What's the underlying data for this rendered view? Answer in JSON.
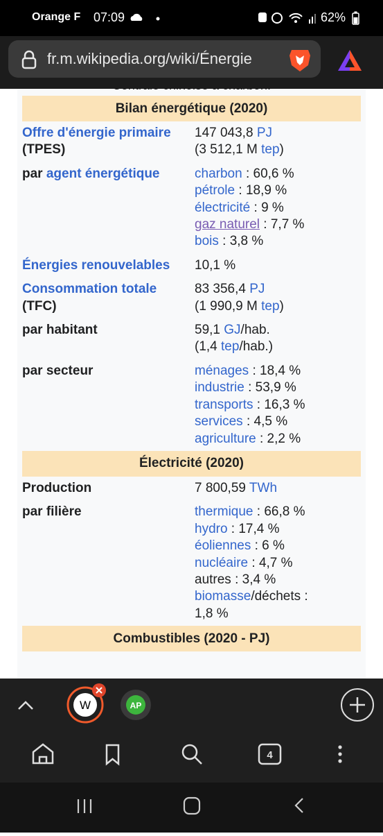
{
  "status_bar": {
    "carrier": "Orange F",
    "time": "07:09",
    "battery": "62%"
  },
  "url_bar": {
    "url": "fr.m.wikipedia.org/wiki/Énergie"
  },
  "page": {
    "caption": "Centrale chinoise à charbon.",
    "sections": [
      {
        "title": "Bilan énergétique (2020)",
        "rows": [
          {
            "label": [
              [
                {
                  "text": "Offre d'énergie primaire",
                  "link": true
                }
              ],
              [
                {
                  "text": "(TPES)"
                }
              ]
            ],
            "value": [
              [
                {
                  "text": "147 043,8 "
                },
                {
                  "text": "PJ",
                  "link": true
                }
              ],
              [
                {
                  "text": "(3 512,1 M "
                },
                {
                  "text": "tep",
                  "link": true
                },
                {
                  "text": ")"
                }
              ]
            ]
          },
          {
            "label": [
              [
                {
                  "text": "par "
                },
                {
                  "text": "agent énergétique",
                  "link": true
                }
              ]
            ],
            "value": [
              [
                {
                  "text": "charbon",
                  "link": true
                },
                {
                  "text": " : 60,6 %"
                }
              ],
              [
                {
                  "text": "pétrole",
                  "link": true
                },
                {
                  "text": " : 18,9 %"
                }
              ],
              [
                {
                  "text": "électricité",
                  "link": true
                },
                {
                  "text": " : 9 %"
                }
              ],
              [
                {
                  "text": "gaz naturel",
                  "visited": true
                },
                {
                  "text": " : 7,7 %"
                }
              ],
              [
                {
                  "text": "bois",
                  "link": true
                },
                {
                  "text": " : 3,8 %"
                }
              ]
            ]
          },
          {
            "label": [
              [
                {
                  "text": "Énergies renouvelables",
                  "link": true
                }
              ]
            ],
            "value": [
              [
                {
                  "text": "10,1 %"
                }
              ]
            ]
          },
          {
            "label": [
              [
                {
                  "text": "Consommation totale",
                  "link": true
                }
              ],
              [
                {
                  "text": "(TFC)"
                }
              ]
            ],
            "value": [
              [
                {
                  "text": "83 356,4 "
                },
                {
                  "text": "PJ",
                  "link": true
                }
              ],
              [
                {
                  "text": "(1 990,9 M "
                },
                {
                  "text": "tep",
                  "link": true
                },
                {
                  "text": ")"
                }
              ]
            ]
          },
          {
            "label": [
              [
                {
                  "text": "par habitant"
                }
              ]
            ],
            "value": [
              [
                {
                  "text": "59,1 "
                },
                {
                  "text": "GJ",
                  "link": true
                },
                {
                  "text": "/hab."
                }
              ],
              [
                {
                  "text": "(1,4 "
                },
                {
                  "text": "tep",
                  "link": true
                },
                {
                  "text": "/hab.)"
                }
              ]
            ]
          },
          {
            "label": [
              [
                {
                  "text": "par secteur"
                }
              ]
            ],
            "value": [
              [
                {
                  "text": "ménages",
                  "link": true
                },
                {
                  "text": " : 18,4 %"
                }
              ],
              [
                {
                  "text": "industrie",
                  "link": true
                },
                {
                  "text": " : 53,9 %"
                }
              ],
              [
                {
                  "text": "transports",
                  "link": true
                },
                {
                  "text": " : 16,3 %"
                }
              ],
              [
                {
                  "text": "services",
                  "link": true
                },
                {
                  "text": " : 4,5 %"
                }
              ],
              [
                {
                  "text": "agriculture",
                  "link": true
                },
                {
                  "text": " : 2,2 %"
                }
              ]
            ]
          }
        ]
      },
      {
        "title": "Électricité (2020)",
        "rows": [
          {
            "label": [
              [
                {
                  "text": "Production"
                }
              ]
            ],
            "value": [
              [
                {
                  "text": "7 800,59 "
                },
                {
                  "text": "TWh",
                  "link": true
                }
              ]
            ]
          },
          {
            "label": [
              [
                {
                  "text": "par filière"
                }
              ]
            ],
            "value": [
              [
                {
                  "text": "thermique",
                  "link": true
                },
                {
                  "text": " : 66,8 %"
                }
              ],
              [
                {
                  "text": "hydro",
                  "link": true
                },
                {
                  "text": " : 17,4 %"
                }
              ],
              [
                {
                  "text": "éoliennes",
                  "link": true
                },
                {
                  "text": " : 6 %"
                }
              ],
              [
                {
                  "text": "nucléaire",
                  "link": true
                },
                {
                  "text": " : 4,7 %"
                }
              ],
              [
                {
                  "text": "autres : 3,4 %"
                }
              ],
              [
                {
                  "text": "biomasse",
                  "link": true
                },
                {
                  "text": "/déchets :"
                }
              ],
              [
                {
                  "text": "1,8 %"
                }
              ]
            ]
          }
        ]
      },
      {
        "title": "Combustibles (2020 - PJ)",
        "rows": []
      }
    ]
  },
  "tabs": {
    "tab_1": "W",
    "tab_2": "AP",
    "tab_count": "4"
  }
}
